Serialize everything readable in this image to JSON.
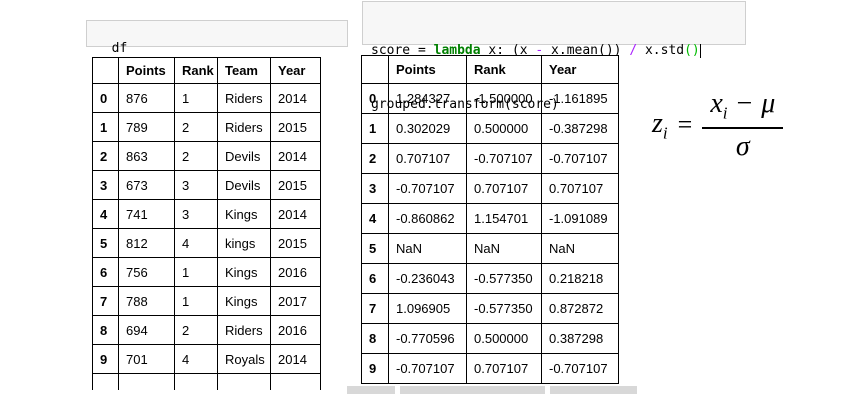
{
  "colors": {
    "code_cell_bg": "#f7f7f7",
    "code_cell_border": "#cfcfcf",
    "keyword_green": "#008000",
    "operator_purple": "#aa22ff",
    "matching_bracket_green": "#00bb00",
    "table_border": "#000000",
    "scrollbar_gray": "#d8d8d8"
  },
  "left_code_cell": {
    "code": "df"
  },
  "left_table": {
    "columns": [
      "",
      "Points",
      "Rank",
      "Team",
      "Year"
    ],
    "rows": [
      [
        "0",
        "876",
        "1",
        "Riders",
        "2014"
      ],
      [
        "1",
        "789",
        "2",
        "Riders",
        "2015"
      ],
      [
        "2",
        "863",
        "2",
        "Devils",
        "2014"
      ],
      [
        "3",
        "673",
        "3",
        "Devils",
        "2015"
      ],
      [
        "4",
        "741",
        "3",
        "Kings",
        "2014"
      ],
      [
        "5",
        "812",
        "4",
        "kings",
        "2015"
      ],
      [
        "6",
        "756",
        "1",
        "Kings",
        "2016"
      ],
      [
        "7",
        "788",
        "1",
        "Kings",
        "2017"
      ],
      [
        "8",
        "694",
        "2",
        "Riders",
        "2016"
      ],
      [
        "9",
        "701",
        "4",
        "Royals",
        "2014"
      ]
    ],
    "has_partial_row": true
  },
  "right_code_cell": {
    "tokens_line1": [
      {
        "t": "score = ",
        "c": "plain"
      },
      {
        "t": "lambda",
        "c": "keyword"
      },
      {
        "t": " x: (x ",
        "c": "plain"
      },
      {
        "t": "-",
        "c": "operator"
      },
      {
        "t": " x.mean()) ",
        "c": "plain"
      },
      {
        "t": "/",
        "c": "operator"
      },
      {
        "t": " x.std",
        "c": "plain"
      },
      {
        "t": "()",
        "c": "bracket"
      }
    ],
    "line2": "grouped.transform(score)"
  },
  "right_table": {
    "columns": [
      "",
      "Points",
      "Rank",
      "Year"
    ],
    "rows": [
      [
        "0",
        "1.284327",
        "-1.500000",
        "-1.161895"
      ],
      [
        "1",
        "0.302029",
        "0.500000",
        "-0.387298"
      ],
      [
        "2",
        "0.707107",
        "-0.707107",
        "-0.707107"
      ],
      [
        "3",
        "-0.707107",
        "0.707107",
        "0.707107"
      ],
      [
        "4",
        "-0.860862",
        "1.154701",
        "-1.091089"
      ],
      [
        "5",
        "NaN",
        "NaN",
        "NaN"
      ],
      [
        "6",
        "-0.236043",
        "-0.577350",
        "0.218218"
      ],
      [
        "7",
        "1.096905",
        "-0.577350",
        "0.872872"
      ],
      [
        "8",
        "-0.770596",
        "0.500000",
        "0.387298"
      ],
      [
        "9",
        "-0.707107",
        "0.707107",
        "-0.707107"
      ]
    ],
    "has_partial_row": false
  },
  "formula": {
    "lhs_base": "z",
    "lhs_sub": "i",
    "equals": "=",
    "num_base": "x",
    "num_sub": "i",
    "minus": "−",
    "mu": "μ",
    "sigma": "σ"
  }
}
